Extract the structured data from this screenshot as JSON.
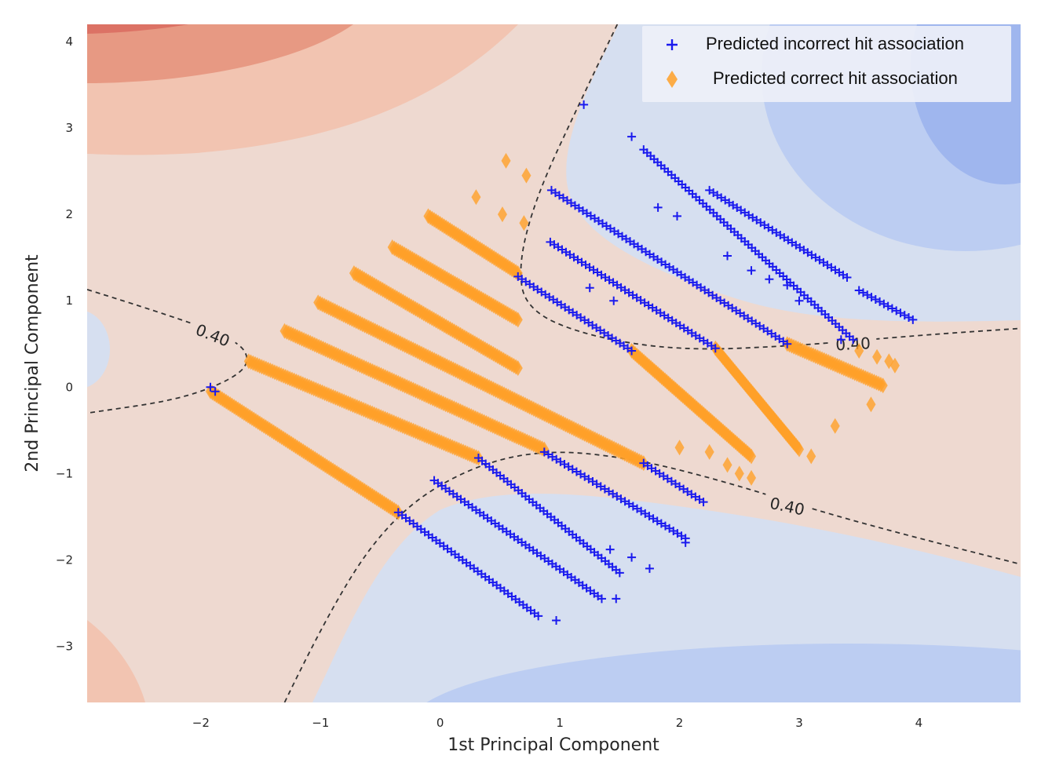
{
  "chart_data": {
    "type": "scatter",
    "xlabel": "1st Principal Component",
    "ylabel": "2nd Principal Component",
    "xlim": [
      -2.95,
      4.85
    ],
    "ylim": [
      -3.65,
      4.2
    ],
    "x_ticks": [
      -2,
      -1,
      0,
      1,
      2,
      3,
      4
    ],
    "y_ticks": [
      -3,
      -2,
      -1,
      0,
      1,
      2,
      3,
      4
    ],
    "x_tick_labels": [
      "−2",
      "−1",
      "0",
      "1",
      "2",
      "3",
      "4"
    ],
    "y_tick_labels": [
      "−3",
      "−2",
      "−1",
      "0",
      "1",
      "2",
      "3",
      "4"
    ],
    "grid": false,
    "legend_position": "top-right",
    "background": "filled decision contour (red = high, blue = low)",
    "contour_line": {
      "level_label": "0.40",
      "style": "dashed",
      "color": "#333333",
      "label_positions": [
        {
          "x": -1.9,
          "y": 0.6
        },
        {
          "x": 3.45,
          "y": 0.5
        },
        {
          "x": 2.9,
          "y": -1.38
        }
      ]
    },
    "series": [
      {
        "name": "Predicted incorrect hit association",
        "marker": "plus",
        "color": "#1a1aee",
        "segments": [
          {
            "from": [
              -1.92,
              0.0
            ],
            "to": [
              -1.88,
              -0.05
            ]
          },
          {
            "from": [
              -0.35,
              -1.45
            ],
            "to": [
              0.82,
              -2.65
            ]
          },
          {
            "from": [
              -0.05,
              -1.08
            ],
            "to": [
              1.35,
              -2.45
            ]
          },
          {
            "from": [
              0.32,
              -0.82
            ],
            "to": [
              1.5,
              -2.15
            ]
          },
          {
            "from": [
              0.87,
              -0.75
            ],
            "to": [
              2.05,
              -1.75
            ]
          },
          {
            "from": [
              1.7,
              -0.88
            ],
            "to": [
              2.2,
              -1.33
            ]
          },
          {
            "from": [
              0.65,
              1.28
            ],
            "to": [
              1.6,
              0.42
            ]
          },
          {
            "from": [
              0.92,
              1.68
            ],
            "to": [
              2.3,
              0.45
            ]
          },
          {
            "from": [
              0.93,
              2.28
            ],
            "to": [
              2.9,
              0.5
            ]
          },
          {
            "from": [
              1.7,
              2.75
            ],
            "to": [
              3.45,
              0.55
            ]
          },
          {
            "from": [
              2.25,
              2.28
            ],
            "to": [
              3.4,
              1.27
            ]
          },
          {
            "from": [
              3.5,
              1.12
            ],
            "to": [
              3.95,
              0.78
            ]
          }
        ],
        "points": [
          {
            "x": 1.2,
            "y": 3.27
          },
          {
            "x": 1.6,
            "y": 2.9
          },
          {
            "x": 1.82,
            "y": 2.08
          },
          {
            "x": 1.98,
            "y": 1.98
          },
          {
            "x": 2.4,
            "y": 1.52
          },
          {
            "x": 2.6,
            "y": 1.35
          },
          {
            "x": 2.75,
            "y": 1.25
          },
          {
            "x": 2.9,
            "y": 1.18
          },
          {
            "x": 3.0,
            "y": 1.0
          },
          {
            "x": 3.35,
            "y": 0.55
          },
          {
            "x": 1.25,
            "y": 1.15
          },
          {
            "x": 1.45,
            "y": 1.0
          },
          {
            "x": 0.97,
            "y": -2.7
          },
          {
            "x": 1.75,
            "y": -2.1
          },
          {
            "x": 1.6,
            "y": -1.97
          },
          {
            "x": 1.42,
            "y": -1.88
          },
          {
            "x": 1.47,
            "y": -2.45
          },
          {
            "x": 2.05,
            "y": -1.8
          }
        ]
      },
      {
        "name": "Predicted correct hit association",
        "marker": "diamond",
        "color": "#ffa028",
        "segments": [
          {
            "from": [
              -1.92,
              -0.05
            ],
            "to": [
              -0.35,
              -1.45
            ]
          },
          {
            "from": [
              -1.6,
              0.3
            ],
            "to": [
              0.32,
              -0.82
            ]
          },
          {
            "from": [
              -1.3,
              0.65
            ],
            "to": [
              0.87,
              -0.72
            ]
          },
          {
            "from": [
              -1.02,
              0.98
            ],
            "to": [
              1.7,
              -0.88
            ]
          },
          {
            "from": [
              -0.72,
              1.32
            ],
            "to": [
              0.65,
              0.22
            ]
          },
          {
            "from": [
              -0.4,
              1.62
            ],
            "to": [
              0.65,
              0.78
            ]
          },
          {
            "from": [
              -0.1,
              1.98
            ],
            "to": [
              0.65,
              1.32
            ]
          },
          {
            "from": [
              1.6,
              0.42
            ],
            "to": [
              2.6,
              -0.8
            ]
          },
          {
            "from": [
              2.3,
              0.45
            ],
            "to": [
              3.0,
              -0.72
            ]
          },
          {
            "from": [
              2.9,
              0.5
            ],
            "to": [
              3.7,
              0.02
            ]
          }
        ],
        "points": [
          {
            "x": 0.55,
            "y": 2.62
          },
          {
            "x": 0.72,
            "y": 2.45
          },
          {
            "x": 0.3,
            "y": 2.2
          },
          {
            "x": 0.52,
            "y": 2.0
          },
          {
            "x": 0.7,
            "y": 1.9
          },
          {
            "x": 2.0,
            "y": -0.7
          },
          {
            "x": 2.25,
            "y": -0.75
          },
          {
            "x": 2.5,
            "y": -1.0
          },
          {
            "x": 2.6,
            "y": -1.05
          },
          {
            "x": 2.4,
            "y": -0.9
          },
          {
            "x": 3.1,
            "y": -0.8
          },
          {
            "x": 3.3,
            "y": -0.45
          },
          {
            "x": 3.6,
            "y": -0.2
          },
          {
            "x": 3.5,
            "y": 0.42
          },
          {
            "x": 3.65,
            "y": 0.35
          },
          {
            "x": 3.75,
            "y": 0.3
          },
          {
            "x": 3.8,
            "y": 0.25
          }
        ]
      }
    ]
  },
  "legend": {
    "items": [
      {
        "label": "Predicted incorrect hit association",
        "marker": "plus",
        "color": "#1a1aee"
      },
      {
        "label": "Predicted correct hit association",
        "marker": "diamond",
        "color": "#ffa028"
      }
    ]
  }
}
